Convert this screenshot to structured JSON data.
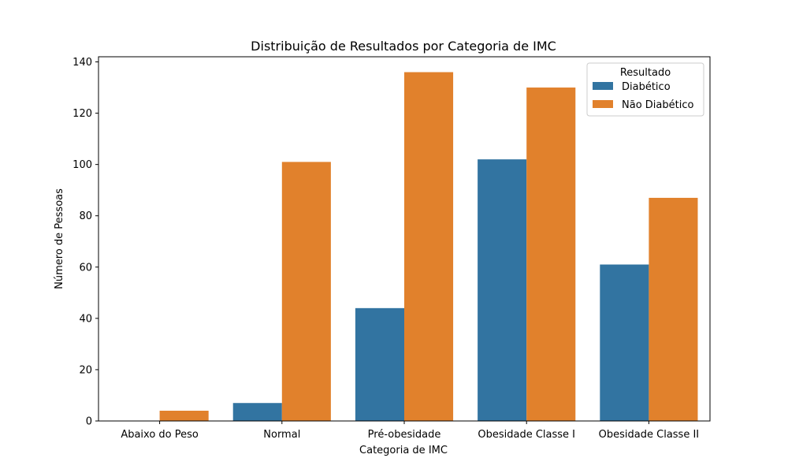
{
  "chart_data": {
    "type": "bar",
    "title": "Distribuição de Resultados por Categoria de IMC",
    "xlabel": "Categoria de IMC",
    "ylabel": "Número de Pessoas",
    "categories": [
      "Abaixo do Peso",
      "Normal",
      "Pré-obesidade",
      "Obesidade Classe I",
      "Obesidade Classe II"
    ],
    "series": [
      {
        "name": "Diabético",
        "color": "#3274a1",
        "values": [
          0,
          7,
          44,
          102,
          61
        ]
      },
      {
        "name": "Não Diabético",
        "color": "#e1812c",
        "values": [
          4,
          101,
          136,
          130,
          87
        ]
      }
    ],
    "ylim": [
      0,
      142
    ],
    "yticks": [
      0,
      20,
      40,
      60,
      80,
      100,
      120,
      140
    ],
    "grid": false,
    "legend": {
      "title": "Resultado",
      "placement": "top-right"
    }
  }
}
